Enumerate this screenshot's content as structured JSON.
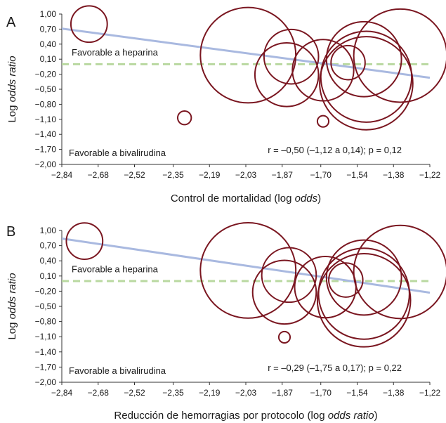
{
  "chart_data": [
    {
      "type": "scatter",
      "panel": "A",
      "xlabel_parts": [
        "Control de mortalidad (log ",
        "odds",
        ")"
      ],
      "ylabel_parts": [
        "Log ",
        "odds ratio"
      ],
      "xticks": [
        -2.84,
        -2.68,
        -2.52,
        -2.35,
        -2.19,
        -2.03,
        -1.87,
        -1.7,
        -1.54,
        -1.38,
        -1.22
      ],
      "xtick_labels": [
        "−2,84",
        "−2,68",
        "−2,52",
        "−2,35",
        "−2,19",
        "−2,03",
        "−1,87",
        "−1,70",
        "−1,54",
        "−1,38",
        "−1,22"
      ],
      "yticks": [
        1.0,
        0.7,
        0.4,
        0.1,
        -0.2,
        -0.5,
        -0.8,
        -1.1,
        -1.4,
        -1.7,
        -2.0
      ],
      "ytick_labels": [
        "1,00",
        "0,70",
        "0,40",
        "0,10",
        "−0,20",
        "−0,50",
        "−0,80",
        "−1,10",
        "−1,40",
        "−1,70",
        "−2,00"
      ],
      "xlim": [
        -2.84,
        -1.22
      ],
      "ylim": [
        -2.0,
        1.0
      ],
      "grid": false,
      "points": [
        {
          "x": -2.72,
          "y": 0.8,
          "size": 0.16
        },
        {
          "x": -2.3,
          "y": -1.07,
          "size": 0.06
        },
        {
          "x": -2.02,
          "y": 0.18,
          "size": 0.42
        },
        {
          "x": -1.83,
          "y": 0.15,
          "size": 0.24
        },
        {
          "x": -1.85,
          "y": -0.21,
          "size": 0.28
        },
        {
          "x": -1.69,
          "y": -0.12,
          "size": 0.27
        },
        {
          "x": -1.69,
          "y": -1.14,
          "size": 0.05
        },
        {
          "x": -1.58,
          "y": 0.03,
          "size": 0.15
        },
        {
          "x": -1.51,
          "y": 0.1,
          "size": 0.33
        },
        {
          "x": -1.5,
          "y": -0.25,
          "size": 0.4
        },
        {
          "x": -1.5,
          "y": -0.38,
          "size": 0.41
        },
        {
          "x": -1.35,
          "y": 0.17,
          "size": 0.41
        }
      ],
      "regression": {
        "x0": -2.84,
        "y0": 0.71,
        "x1": -1.22,
        "y1": -0.27
      },
      "reference_y": 0.0,
      "annotations": {
        "upper": "Favorable a heparina",
        "lower": "Favorable a bivalirudina",
        "stats": "r = –0,50 (–1,12 a 0,14); p = 0,12"
      }
    },
    {
      "type": "scatter",
      "panel": "B",
      "xlabel_parts": [
        "Reducción de hemorragias por protocolo (log ",
        "odds ratio",
        ")"
      ],
      "ylabel_parts": [
        "Log ",
        "odds ratio"
      ],
      "xticks": [
        -2.84,
        -2.68,
        -2.52,
        -2.35,
        -2.19,
        -2.03,
        -1.87,
        -1.7,
        -1.54,
        -1.38,
        -1.22
      ],
      "xtick_labels": [
        "−2,84",
        "−2,68",
        "−2,52",
        "−2,35",
        "−2,19",
        "−2,03",
        "−1,87",
        "−1,70",
        "−1,54",
        "−1,38",
        "−1,22"
      ],
      "yticks": [
        1.0,
        0.7,
        0.4,
        0.1,
        -0.2,
        -0.5,
        -0.8,
        -1.1,
        -1.4,
        -1.7,
        -2.0
      ],
      "ytick_labels": [
        "1,00",
        "0,70",
        "0,40",
        "0,10",
        "−0,20",
        "−0,50",
        "−0,80",
        "−1,10",
        "−1,40",
        "−1,70",
        "−2,00"
      ],
      "xlim": [
        -2.84,
        -1.22
      ],
      "ylim": [
        -2.0,
        1.0
      ],
      "grid": false,
      "points": [
        {
          "x": -2.74,
          "y": 0.79,
          "size": 0.16
        },
        {
          "x": -2.02,
          "y": 0.21,
          "size": 0.42
        },
        {
          "x": -1.84,
          "y": 0.12,
          "size": 0.24
        },
        {
          "x": -1.86,
          "y": -0.22,
          "size": 0.28
        },
        {
          "x": -1.68,
          "y": -0.12,
          "size": 0.27
        },
        {
          "x": -1.86,
          "y": -1.11,
          "size": 0.05
        },
        {
          "x": -1.59,
          "y": 0.02,
          "size": 0.15
        },
        {
          "x": -1.51,
          "y": 0.07,
          "size": 0.33
        },
        {
          "x": -1.51,
          "y": -0.25,
          "size": 0.4
        },
        {
          "x": -1.51,
          "y": -0.38,
          "size": 0.41
        },
        {
          "x": -1.35,
          "y": 0.18,
          "size": 0.41
        }
      ],
      "regression": {
        "x0": -2.84,
        "y0": 0.84,
        "x1": -1.22,
        "y1": -0.23
      },
      "reference_y": 0.0,
      "annotations": {
        "upper": "Favorable a heparina",
        "lower": "Favorable a bivalirudina",
        "stats": "r = –0,29 (–1,75 a 0,17); p = 0,22"
      }
    }
  ],
  "colors": {
    "bubble": "#7a1620",
    "regression": "#a9b9e0",
    "reference": "#b9d8a0",
    "axis": "#333333"
  }
}
